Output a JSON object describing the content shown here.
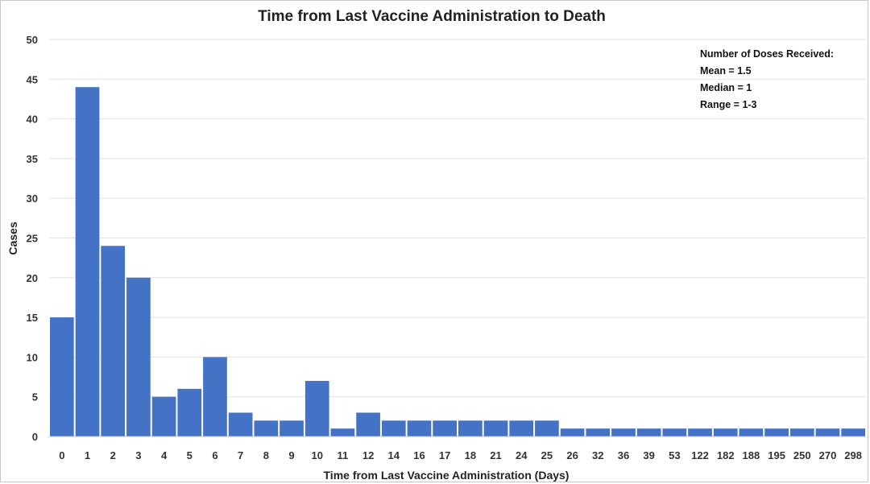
{
  "chart_data": {
    "type": "bar",
    "title": "Time from Last Vaccine Administration to Death",
    "xlabel": "Time from Last Vaccine Administration (Days)",
    "ylabel": "Cases",
    "ylim": [
      0,
      50
    ],
    "y_ticks": [
      0,
      5,
      10,
      15,
      20,
      25,
      30,
      35,
      40,
      45,
      50
    ],
    "grid": true,
    "bar_color": "#4472C4",
    "categories": [
      "0",
      "1",
      "2",
      "3",
      "4",
      "5",
      "6",
      "7",
      "8",
      "9",
      "10",
      "11",
      "12",
      "14",
      "16",
      "17",
      "18",
      "21",
      "24",
      "25",
      "26",
      "32",
      "36",
      "39",
      "53",
      "122",
      "182",
      "188",
      "195",
      "250",
      "270",
      "298"
    ],
    "values": [
      15,
      44,
      24,
      20,
      5,
      6,
      10,
      3,
      2,
      2,
      7,
      1,
      3,
      2,
      2,
      2,
      2,
      2,
      2,
      2,
      1,
      1,
      1,
      1,
      1,
      1,
      1,
      1,
      1,
      1,
      1,
      1
    ],
    "annotation": {
      "position": "top-right",
      "lines": [
        "Number of Doses Received:",
        "Mean = 1.5",
        "Median = 1",
        "Range = 1-3"
      ]
    }
  }
}
